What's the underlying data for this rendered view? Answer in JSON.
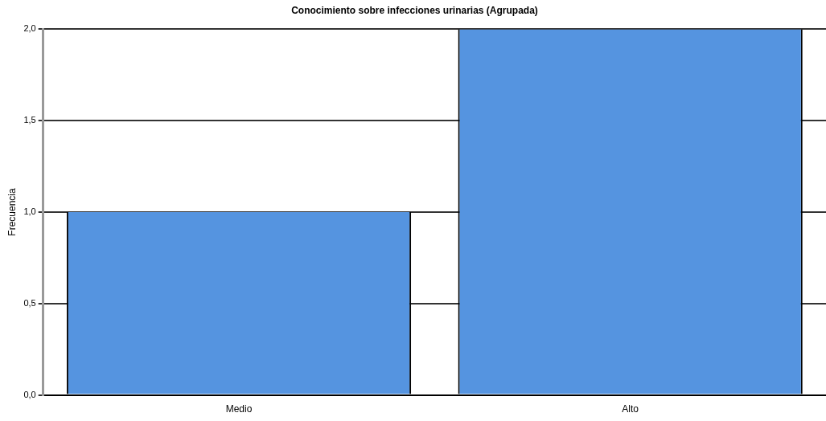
{
  "chart_data": {
    "type": "bar",
    "title": "Conocimiento sobre infecciones urinarias (Agrupada)",
    "ylabel": "Frecuencia",
    "categories": [
      "Medio",
      "Alto"
    ],
    "values": [
      1.0,
      2.0
    ],
    "color": "#5594e0",
    "ylim": [
      0,
      2
    ],
    "yticks": [
      {
        "value": 0,
        "label": "0,0"
      },
      {
        "value": 0.5,
        "label": "0,5"
      },
      {
        "value": 1,
        "label": "1,0"
      },
      {
        "value": 1.5,
        "label": "1,5"
      },
      {
        "value": 2,
        "label": "2,0"
      }
    ],
    "grid": "y",
    "legend": false
  }
}
